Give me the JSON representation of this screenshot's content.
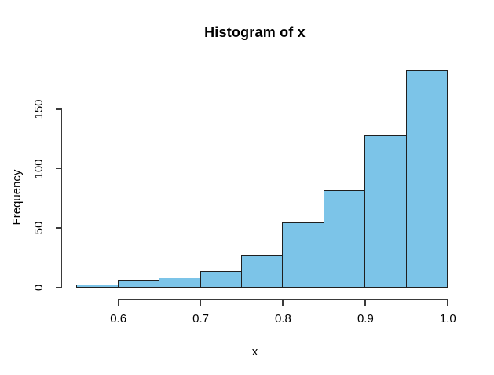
{
  "title": "Histogram of x",
  "colors": {
    "bar_fill": "#7CC4E8",
    "bar_border": "#1f1f1f",
    "axis": "#3a3a3a",
    "text": "#000000",
    "background": "#ffffff"
  },
  "chart_data": {
    "type": "bar",
    "subtype": "histogram",
    "title": "Histogram of x",
    "xlabel": "x",
    "ylabel": "Frequency",
    "breaks": [
      0.55,
      0.6,
      0.65,
      0.7,
      0.75,
      0.8,
      0.85,
      0.9,
      0.95,
      1.0
    ],
    "counts": [
      2,
      6,
      8,
      13,
      27,
      54,
      81,
      128,
      183
    ],
    "x_ticks": [
      0.6,
      0.7,
      0.8,
      0.9,
      1.0
    ],
    "y_ticks": [
      0,
      50,
      100,
      150
    ],
    "xlim": [
      0.55,
      1.0
    ],
    "ylim": [
      0,
      185
    ],
    "grid": false,
    "legend": null
  }
}
